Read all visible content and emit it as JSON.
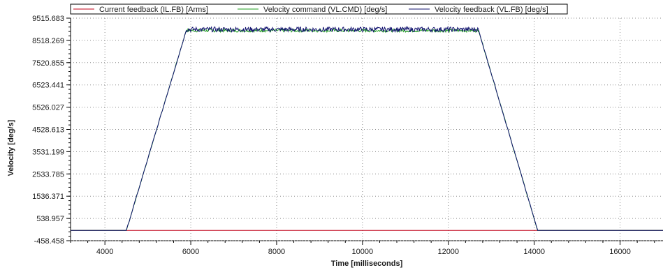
{
  "chart_data": {
    "type": "line",
    "xlabel": "Time [milliseconds]",
    "ylabel": "Velocity [deg/s]",
    "xlim": [
      3200,
      17000
    ],
    "ylim": [
      -458.458,
      9515.683
    ],
    "x_ticks": [
      4000,
      6000,
      8000,
      10000,
      12000,
      14000,
      16000
    ],
    "y_ticks": [
      -458.458,
      538.957,
      1536.371,
      2533.785,
      3531.199,
      4528.613,
      5526.027,
      6523.441,
      7520.855,
      8518.269,
      9515.683
    ],
    "x_tick_labels": [
      "4000",
      "6000",
      "8000",
      "10000",
      "12000",
      "14000",
      "16000"
    ],
    "y_tick_labels": [
      "-458.458",
      "538.957",
      "1536.371",
      "2533.785",
      "3531.199",
      "4528.613",
      "5526.027",
      "6523.441",
      "7520.855",
      "8518.269",
      "9515.683"
    ],
    "grid": true,
    "legend_position": "top",
    "series": [
      {
        "name": "Current feedback (IL.FB) [Arms]",
        "color": "#c0001a",
        "x": [
          3200,
          17000
        ],
        "y": [
          0,
          0
        ]
      },
      {
        "name": "Velocity command (VL.CMD) [deg/s]",
        "color": "#1f9e1f",
        "x": [
          3200,
          4500,
          5900,
          12700,
          14080,
          17000
        ],
        "y": [
          0,
          0,
          9000,
          9000,
          0,
          0
        ]
      },
      {
        "name": "Velocity feedback (VL.FB) [deg/s]",
        "color": "#10106e",
        "x": [
          3200,
          4500,
          5900,
          12700,
          14080,
          17000
        ],
        "y": [
          0,
          0,
          9000,
          9000,
          0,
          0
        ]
      }
    ]
  }
}
